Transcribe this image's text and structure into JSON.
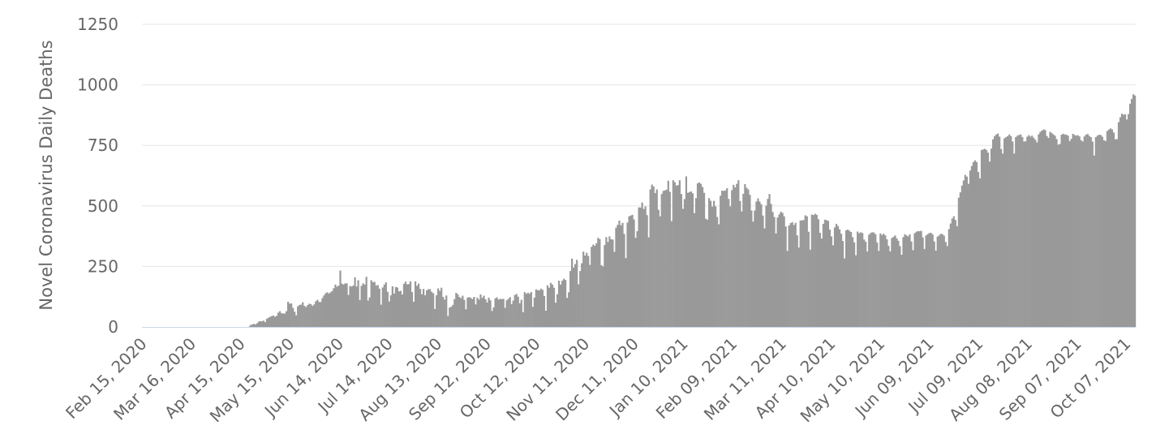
{
  "chart_data": {
    "type": "bar",
    "title": "",
    "xlabel": "",
    "ylabel": "Novel Coronavirus Daily Deaths",
    "ylim": [
      0,
      1250
    ],
    "yticks": [
      "0",
      "250",
      "500",
      "750",
      "1000",
      "1250"
    ],
    "ytick_values": [
      0,
      250,
      500,
      750,
      1000,
      1250
    ],
    "grid": true,
    "legend": "none",
    "colors": {
      "bar": "#999999",
      "grid": "#e6e6e6",
      "axis": "#ccd6eb",
      "text": "#666666"
    },
    "x_start": "Feb 15, 2020",
    "x_end": "Oct 13, 2021",
    "xticks": [
      "Feb 15, 2020",
      "Mar 16, 2020",
      "Apr 15, 2020",
      "May 15, 2020",
      "Jun 14, 2020",
      "Jul 14, 2020",
      "Aug 13, 2020",
      "Sep 12, 2020",
      "Oct 12, 2020",
      "Nov 11, 2020",
      "Dec 11, 2020",
      "Jan 10, 2021",
      "Feb 09, 2021",
      "Mar 11, 2021",
      "Apr 10, 2021",
      "May 10, 2021",
      "Jun 09, 2021",
      "Jul 09, 2021",
      "Aug 08, 2021",
      "Sep 07, 2021",
      "Oct 07, 2021"
    ],
    "series": [
      {
        "values": [
          0,
          0,
          0,
          0,
          0,
          0,
          0,
          0,
          0,
          0,
          0,
          0,
          0,
          0,
          0,
          0,
          0,
          0,
          0,
          0,
          0,
          0,
          0,
          0,
          0,
          0,
          0,
          0,
          0,
          0,
          0,
          0,
          0,
          0,
          0,
          0,
          0,
          0,
          0,
          0,
          0,
          0,
          0,
          0,
          0,
          0,
          0,
          0,
          0,
          0,
          0,
          0,
          0,
          0,
          0,
          0,
          0,
          0,
          0,
          0,
          0,
          0,
          0,
          0,
          0,
          1,
          8,
          10,
          13,
          10,
          15,
          22,
          24,
          23,
          26,
          20,
          34,
          38,
          42,
          45,
          47,
          42,
          46,
          59,
          65,
          56,
          56,
          55,
          65,
          104,
          96,
          97,
          79,
          63,
          48,
          85,
          91,
          92,
          102,
          87,
          82,
          90,
          96,
          94,
          87,
          93,
          106,
          112,
          103,
          103,
          119,
          130,
          139,
          143,
          138,
          143,
          148,
          160,
          175,
          166,
          171,
          233,
          179,
          175,
          180,
          180,
          132,
          169,
          167,
          171,
          205,
          167,
          193,
          111,
          170,
          180,
          175,
          207,
          109,
          122,
          193,
          185,
          186,
          171,
          173,
          158,
          92,
          163,
          175,
          184,
          145,
          105,
          131,
          168,
          138,
          165,
          163,
          147,
          149,
          134,
          178,
          187,
          176,
          177,
          188,
          144,
          104,
          188,
          170,
          179,
          157,
          135,
          157,
          131,
          151,
          156,
          156,
          145,
          139,
          74,
          131,
          159,
          149,
          162,
          124,
          113,
          130,
          45,
          80,
          83,
          91,
          115,
          141,
          135,
          124,
          119,
          129,
          112,
          73,
          121,
          123,
          120,
          115,
          124,
          93,
          121,
          113,
          134,
          120,
          129,
          114,
          101,
          121,
          110,
          66,
          81,
          118,
          122,
          113,
          116,
          115,
          116,
          79,
          110,
          116,
          123,
          94,
          109,
          132,
          136,
          125,
          98,
          112,
          61,
          144,
          137,
          141,
          137,
          144,
          83,
          121,
          155,
          152,
          151,
          158,
          153,
          128,
          67,
          172,
          162,
          182,
          175,
          162,
          100,
          135,
          191,
          175,
          191,
          199,
          194,
          120,
          143,
          231,
          282,
          245,
          260,
          277,
          176,
          231,
          263,
          311,
          295,
          306,
          293,
          256,
          331,
          340,
          335,
          346,
          368,
          363,
          255,
          250,
          338,
          371,
          351,
          374,
          362,
          361,
          310,
          410,
          422,
          439,
          420,
          430,
          384,
          284,
          431,
          457,
          460,
          463,
          444,
          368,
          396,
          494,
          493,
          514,
          487,
          498,
          462,
          370,
          568,
          588,
          580,
          553,
          568,
          484,
          457,
          549,
          562,
          564,
          567,
          604,
          558,
          437,
          606,
          598,
          584,
          586,
          606,
          549,
          488,
          528,
          622,
          554,
          557,
          560,
          552,
          470,
          532,
          593,
          597,
          591,
          578,
          554,
          447,
          443,
          532,
          521,
          497,
          521,
          498,
          454,
          424,
          542,
          563,
          562,
          564,
          573,
          529,
          498,
          565,
          587,
          576,
          591,
          606,
          520,
          477,
          550,
          590,
          575,
          568,
          546,
          481,
          435,
          481,
          518,
          531,
          518,
          507,
          460,
          407,
          501,
          529,
          549,
          508,
          475,
          454,
          386,
          452,
          465,
          476,
          471,
          457,
          415,
          314,
          419,
          429,
          433,
          421,
          430,
          378,
          328,
          440,
          440,
          442,
          461,
          457,
          393,
          319,
          464,
          462,
          467,
          463,
          445,
          389,
          365,
          426,
          443,
          441,
          438,
          402,
          374,
          337,
          411,
          426,
          417,
          403,
          385,
          355,
          283,
          399,
          402,
          397,
          392,
          371,
          349,
          296,
          394,
          387,
          391,
          388,
          361,
          352,
          312,
          381,
          388,
          391,
          390,
          383,
          349,
          314,
          386,
          380,
          385,
          378,
          362,
          335,
          312,
          367,
          372,
          378,
          366,
          356,
          334,
          298,
          371,
          383,
          378,
          374,
          383,
          353,
          317,
          387,
          393,
          396,
          395,
          397,
          370,
          322,
          378,
          383,
          388,
          389,
          382,
          353,
          315,
          373,
          378,
          385,
          383,
          377,
          351,
          334,
          404,
          427,
          448,
          457,
          442,
          416,
          534,
          556,
          584,
          605,
          628,
          621,
          591,
          646,
          665,
          681,
          688,
          681,
          640,
          614,
          731,
          733,
          736,
          731,
          720,
          683,
          737,
          775,
          788,
          795,
          799,
          786,
          735,
          716,
          779,
          784,
          788,
          795,
          788,
          766,
          716,
          784,
          790,
          793,
          795,
          784,
          766,
          767,
          786,
          792,
          786,
          790,
          781,
          773,
          762,
          796,
          806,
          811,
          816,
          813,
          789,
          781,
          806,
          801,
          795,
          790,
          776,
          753,
          756,
          794,
          798,
          795,
          794,
          790,
          768,
          777,
          798,
          793,
          790,
          792,
          787,
          771,
          766,
          787,
          794,
          797,
          789,
          784,
          766,
          708,
          784,
          790,
          794,
          793,
          786,
          771,
          768,
          809,
          815,
          820,
          816,
          803,
          775,
          776,
          846,
          866,
          881,
          876,
          879,
          857,
          879,
          922,
          942,
          961,
          956
        ]
      }
    ]
  }
}
